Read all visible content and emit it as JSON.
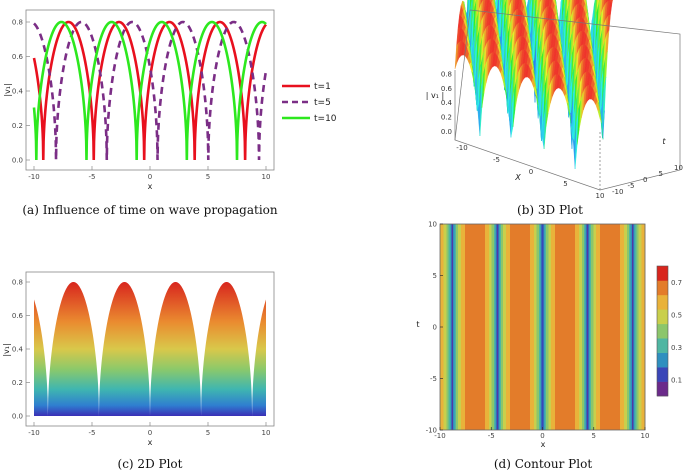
{
  "captions": {
    "a": "(a) Influence of time on wave propagation",
    "b": "(b) 3D Plot",
    "c": "(c) 2D Plot",
    "d": "(d) Contour Plot"
  },
  "colors": {
    "t1": "#e8101e",
    "t5": "#7b2e86",
    "t10": "#2de81e"
  },
  "chart_data": [
    {
      "id": "a",
      "type": "line",
      "xlabel": "x",
      "ylabel": "|v₁|",
      "xlim": [
        -10,
        10
      ],
      "ylim": [
        0,
        0.8
      ],
      "x_ticks": [
        "-10",
        "-5",
        "0",
        "5",
        "10"
      ],
      "y_ticks": [
        "0.0",
        "0.2",
        "0.4",
        "0.6",
        "0.8"
      ],
      "grid": false,
      "legend_position": "right",
      "amplitude": 0.8,
      "period": 4.36,
      "series": [
        {
          "name": "t=1",
          "style": "solid",
          "peaks_x": [
            -7.0,
            -2.7,
            1.7,
            6.0
          ],
          "zeros_x": [
            -9.2,
            -4.9,
            -0.6,
            3.8,
            8.2
          ]
        },
        {
          "name": "t=5",
          "style": "dashed",
          "peaks_x": [
            -5.9,
            -1.5,
            2.8,
            7.2
          ],
          "zeros_x": [
            -8.1,
            -3.7,
            0.6,
            5.0,
            9.4
          ]
        },
        {
          "name": "t=10",
          "style": "solid",
          "peaks_x": [
            -7.7,
            -3.3,
            1.0,
            5.3,
            9.6
          ],
          "zeros_x": [
            -9.8,
            -5.5,
            -1.2,
            3.2,
            7.5
          ]
        }
      ]
    },
    {
      "id": "b",
      "type": "surface3d",
      "x_axis_label": "X",
      "t_axis_label": "t",
      "z_axis_label": "| v₁ |",
      "x_ticks": [
        "-10",
        "-5",
        "0",
        "5",
        "10"
      ],
      "t_ticks": [
        "-10",
        "-5",
        "0",
        "5",
        "10"
      ],
      "z_ticks": [
        "0.0",
        "0.2",
        "0.4",
        "0.6",
        "0.8"
      ],
      "zlim": [
        0,
        0.8
      ],
      "ridges": 5
    },
    {
      "id": "c",
      "type": "area",
      "xlabel": "x",
      "ylabel": "|v₁|",
      "xlim": [
        -10,
        10
      ],
      "ylim": [
        0,
        0.8
      ],
      "x_ticks": [
        "-10",
        "-5",
        "0",
        "5",
        "10"
      ],
      "y_ticks": [
        "0.0",
        "0.2",
        "0.4",
        "0.6",
        "0.8"
      ],
      "peaks_x": [
        -6.6,
        -2.2,
        2.2,
        6.6
      ],
      "zeros_x": [
        -8.8,
        -4.4,
        0.0,
        4.4,
        8.8
      ],
      "amplitude": 0.8
    },
    {
      "id": "d",
      "type": "heatmap",
      "xlabel": "x",
      "ylabel": "t",
      "xlim": [
        -10,
        10
      ],
      "ylim": [
        -10,
        10
      ],
      "x_ticks": [
        "-10",
        "-5",
        "0",
        "5",
        "10"
      ],
      "y_ticks": [
        "-10",
        "-5",
        "0",
        "5",
        "10"
      ],
      "colorbar_ticks": [
        "0.1",
        "0.3",
        "0.5",
        "0.7"
      ],
      "colorbar_levels": [
        0,
        0.1,
        0.2,
        0.3,
        0.4,
        0.5,
        0.6,
        0.7,
        0.8
      ],
      "colorbar_colors": [
        "#6b2a8a",
        "#3a46b8",
        "#2f8fbf",
        "#4fb6a2",
        "#8cc66b",
        "#c9cf4c",
        "#e9b23a",
        "#e37c2a",
        "#d8261e"
      ],
      "zeros_x": [
        -8.8,
        -4.4,
        0.0,
        4.4,
        8.8
      ]
    }
  ]
}
